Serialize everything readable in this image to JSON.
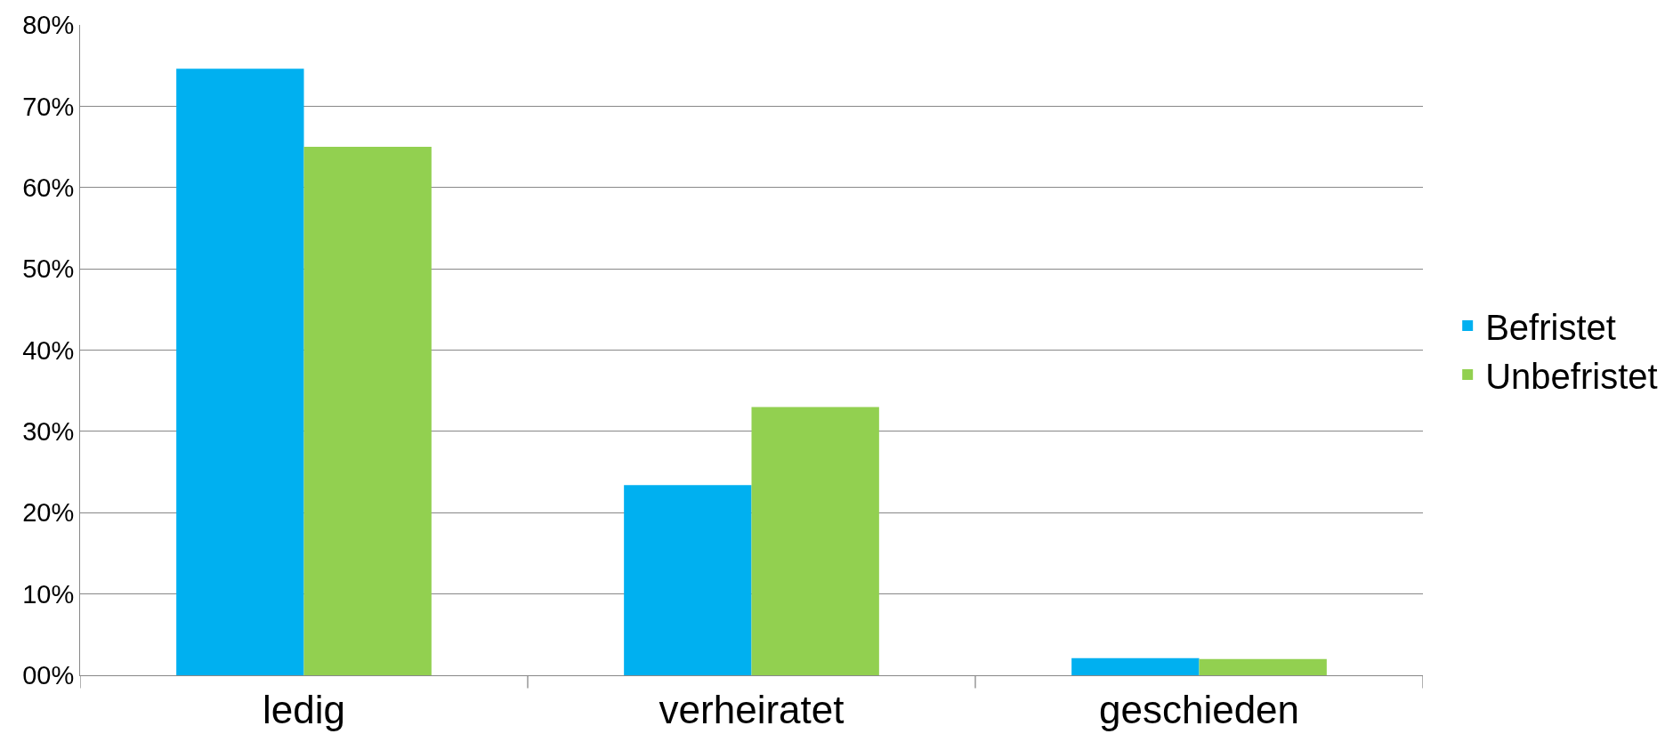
{
  "chart_data": {
    "type": "bar",
    "categories": [
      "ledig",
      "verheiratet",
      "geschieden"
    ],
    "series": [
      {
        "name": "Befristet",
        "color": "#00b0f0",
        "values": [
          74.6,
          23.4,
          2.1
        ]
      },
      {
        "name": "Unbefristet",
        "color": "#92d050",
        "values": [
          65,
          33,
          2
        ]
      }
    ],
    "ylim": [
      0,
      80
    ],
    "yticks": [
      {
        "value": 0,
        "label": "00%"
      },
      {
        "value": 10,
        "label": "10%"
      },
      {
        "value": 20,
        "label": "20%"
      },
      {
        "value": 30,
        "label": "30%"
      },
      {
        "value": 40,
        "label": "40%"
      },
      {
        "value": 50,
        "label": "50%"
      },
      {
        "value": 60,
        "label": "60%"
      },
      {
        "value": 70,
        "label": "70%"
      },
      {
        "value": 80,
        "label": "80%"
      }
    ],
    "grid": "y",
    "legend": "right"
  }
}
